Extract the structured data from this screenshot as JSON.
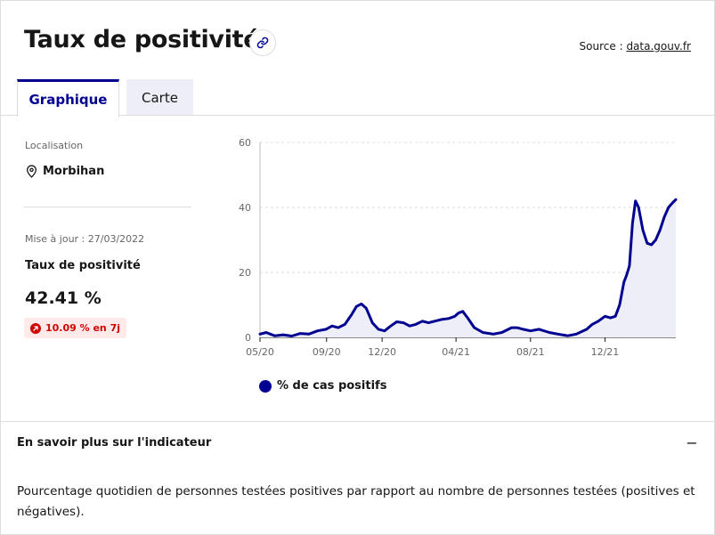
{
  "header": {
    "title": "Taux de positivité",
    "source_prefix": "Source : ",
    "source_link": "data.gouv.fr"
  },
  "tabs": [
    {
      "label": "Graphique",
      "active": true
    },
    {
      "label": "Carte",
      "active": false
    }
  ],
  "sidebar": {
    "location_label": "Localisation",
    "location_value": "Morbihan",
    "update_label": "Mise à jour : 27/03/2022",
    "indicator_title": "Taux de positivité",
    "indicator_value": "42.41 %",
    "badge_text": "10.09 % en 7j",
    "badge_color": "#ce0500"
  },
  "chart_data": {
    "type": "area",
    "title": "",
    "xlabel": "",
    "ylabel": "",
    "ylim": [
      0,
      60
    ],
    "yticks": [
      "0",
      "20",
      "40",
      "60"
    ],
    "xticks": [
      "05/20",
      "09/20",
      "12/20",
      "04/21",
      "08/21",
      "12/21"
    ],
    "xtick_dates": [
      "2020-05-15",
      "2020-09-01",
      "2020-12-01",
      "2021-04-01",
      "2021-08-01",
      "2021-12-01"
    ],
    "x_range": [
      "2020-05-15",
      "2022-03-27"
    ],
    "grid": true,
    "legend_position": "bottom",
    "color": "#000091",
    "fill": "#eeeef8",
    "series": [
      {
        "name": "% de cas positifs",
        "x": [
          "2020-05-15",
          "2020-05-25",
          "2020-06-08",
          "2020-06-22",
          "2020-07-06",
          "2020-07-20",
          "2020-08-03",
          "2020-08-17",
          "2020-08-31",
          "2020-09-10",
          "2020-09-20",
          "2020-10-01",
          "2020-10-12",
          "2020-10-20",
          "2020-10-28",
          "2020-11-05",
          "2020-11-15",
          "2020-11-25",
          "2020-12-05",
          "2020-12-15",
          "2020-12-25",
          "2021-01-05",
          "2021-01-15",
          "2021-01-25",
          "2021-02-05",
          "2021-02-15",
          "2021-02-25",
          "2021-03-08",
          "2021-03-20",
          "2021-03-30",
          "2021-04-05",
          "2021-04-12",
          "2021-04-20",
          "2021-05-01",
          "2021-05-15",
          "2021-06-01",
          "2021-06-15",
          "2021-07-01",
          "2021-07-10",
          "2021-07-20",
          "2021-08-01",
          "2021-08-15",
          "2021-09-01",
          "2021-09-15",
          "2021-10-01",
          "2021-10-15",
          "2021-11-01",
          "2021-11-10",
          "2021-11-20",
          "2021-12-01",
          "2021-12-10",
          "2021-12-18",
          "2021-12-25",
          "2022-01-01",
          "2022-01-05",
          "2022-01-10",
          "2022-01-15",
          "2022-01-20",
          "2022-01-25",
          "2022-02-01",
          "2022-02-08",
          "2022-02-15",
          "2022-02-22",
          "2022-03-01",
          "2022-03-08",
          "2022-03-15",
          "2022-03-22",
          "2022-03-27"
        ],
        "y": [
          1.0,
          1.5,
          0.5,
          0.8,
          0.4,
          1.2,
          1.0,
          2.0,
          2.5,
          3.5,
          3.0,
          4.0,
          7.0,
          9.5,
          10.3,
          9.0,
          4.5,
          2.5,
          2.0,
          3.5,
          4.8,
          4.5,
          3.5,
          4.0,
          5.0,
          4.5,
          5.0,
          5.5,
          5.8,
          6.5,
          7.5,
          8.0,
          6.0,
          3.0,
          1.5,
          1.0,
          1.5,
          3.0,
          3.0,
          2.5,
          2.0,
          2.5,
          1.5,
          1.0,
          0.5,
          1.0,
          2.5,
          4.0,
          5.0,
          6.5,
          6.0,
          6.5,
          10.0,
          17.0,
          19.0,
          22.0,
          35.0,
          42.0,
          40.0,
          33.0,
          29.0,
          28.5,
          30.0,
          33.0,
          37.0,
          40.0,
          41.5,
          42.41
        ]
      }
    ]
  },
  "accordion": {
    "title": "En savoir plus sur l'indicateur",
    "toggle_symbol": "−",
    "description": "Pourcentage quotidien de personnes testées positives par rapport au nombre de personnes testées (positives et négatives)."
  }
}
